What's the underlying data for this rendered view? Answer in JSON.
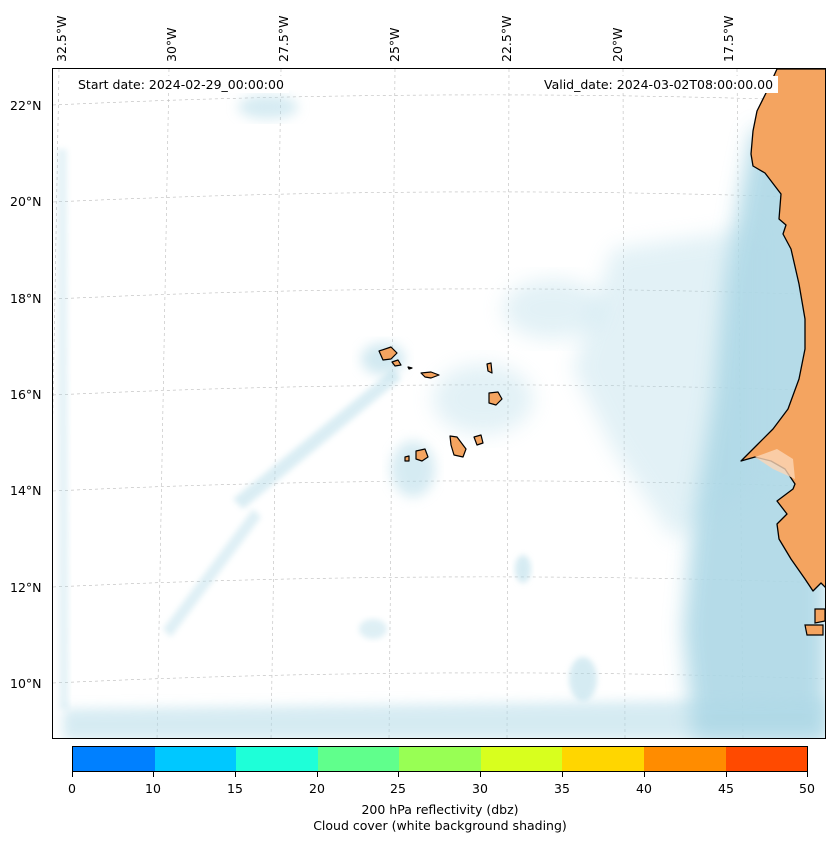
{
  "map": {
    "start_date": "Start date: 2024-02-29_00:00:00",
    "valid_date": "Valid_date: 2024-03-02T08:00:00.00",
    "lon_labels": [
      "32.5°W",
      "30°W",
      "27.5°W",
      "25°W",
      "22.5°W",
      "20°W",
      "17.5°W"
    ],
    "lat_labels": [
      "22°N",
      "20°N",
      "18°N",
      "16°N",
      "14°N",
      "12°N",
      "10°N"
    ],
    "colors": {
      "land": "#f4a460",
      "coast": "#000000",
      "cloud": "#add8e6",
      "grid": "#bbbbbb"
    }
  },
  "colorbar": {
    "ticks": [
      "0",
      "10",
      "15",
      "20",
      "25",
      "30",
      "35",
      "40",
      "45",
      "50"
    ],
    "colors": [
      "#0080ff",
      "#00c8ff",
      "#1effd8",
      "#60ff8c",
      "#98ff54",
      "#d8ff1e",
      "#ffd600",
      "#ff8c00",
      "#ff4a00"
    ],
    "label_line1": "200 hPa reflectivity (dbz)",
    "label_line2": "Cloud cover (white background shading)"
  }
}
